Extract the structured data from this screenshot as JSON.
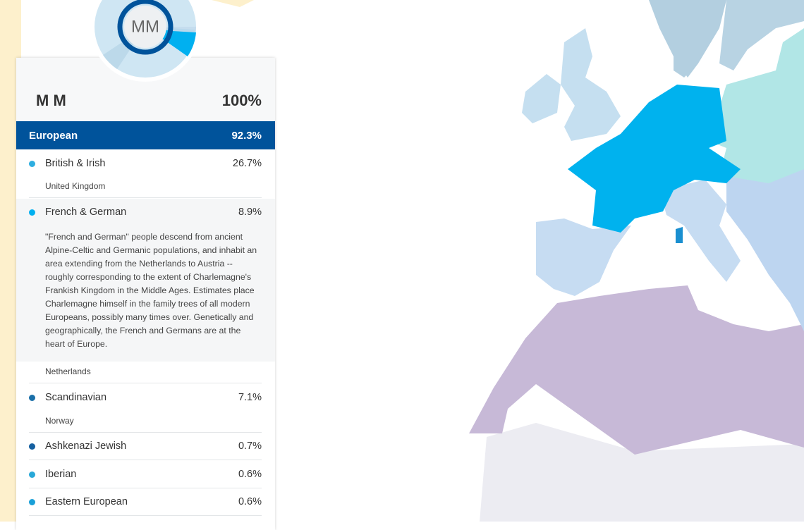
{
  "profile": {
    "initials": "MM",
    "name": "M M",
    "total": "100%"
  },
  "summary": {
    "label": "European",
    "percent": "92.3%"
  },
  "regions": [
    {
      "name": "British & Irish",
      "percent": "26.7%",
      "country": "United Kingdom"
    },
    {
      "name": "French & German",
      "percent": "8.9%",
      "description": "\"French and German\" people descend from ancient Alpine-Celtic and Germanic populations, and inhabit an area extending from the Netherlands to Austria -- roughly corresponding to the extent of Charlemagne's Frankish Kingdom in the Middle Ages. Estimates place Charlemagne himself in the family trees of all modern Europeans, possibly many times over. Genetically and geographically, the French and Germans are at the heart of Europe.",
      "country": "Netherlands"
    },
    {
      "name": "Scandinavian",
      "percent": "7.1%",
      "country": "Norway"
    },
    {
      "name": "Ashkenazi Jewish",
      "percent": "0.7%"
    },
    {
      "name": "Iberian",
      "percent": "0.6%"
    },
    {
      "name": "Eastern European",
      "percent": "0.6%"
    }
  ]
}
